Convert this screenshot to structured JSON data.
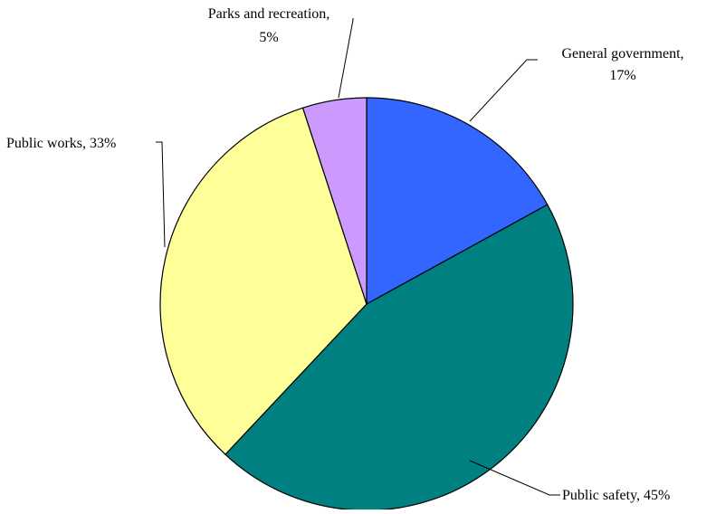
{
  "chart_data": {
    "type": "pie",
    "title": "",
    "start_angle_deg": 0,
    "direction": "clockwise",
    "slices": [
      {
        "label": "General government",
        "value": 17,
        "value_label": "17%",
        "color": "#3366ff"
      },
      {
        "label": "Public safety",
        "value": 45,
        "value_label": "45%",
        "color": "#008080"
      },
      {
        "label": "Public works",
        "value": 33,
        "value_label": "33%",
        "color": "#ffff99"
      },
      {
        "label": "Parks and recreation",
        "value": 5,
        "value_label": "5%",
        "color": "#cc99ff"
      }
    ]
  }
}
